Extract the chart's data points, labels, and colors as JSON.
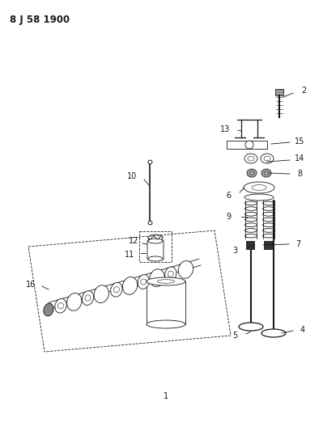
{
  "title": "8 J 58 1900",
  "bg_color": "#ffffff",
  "line_color": "#1a1a1a",
  "fig_width": 3.99,
  "fig_height": 5.33,
  "dpi": 100
}
